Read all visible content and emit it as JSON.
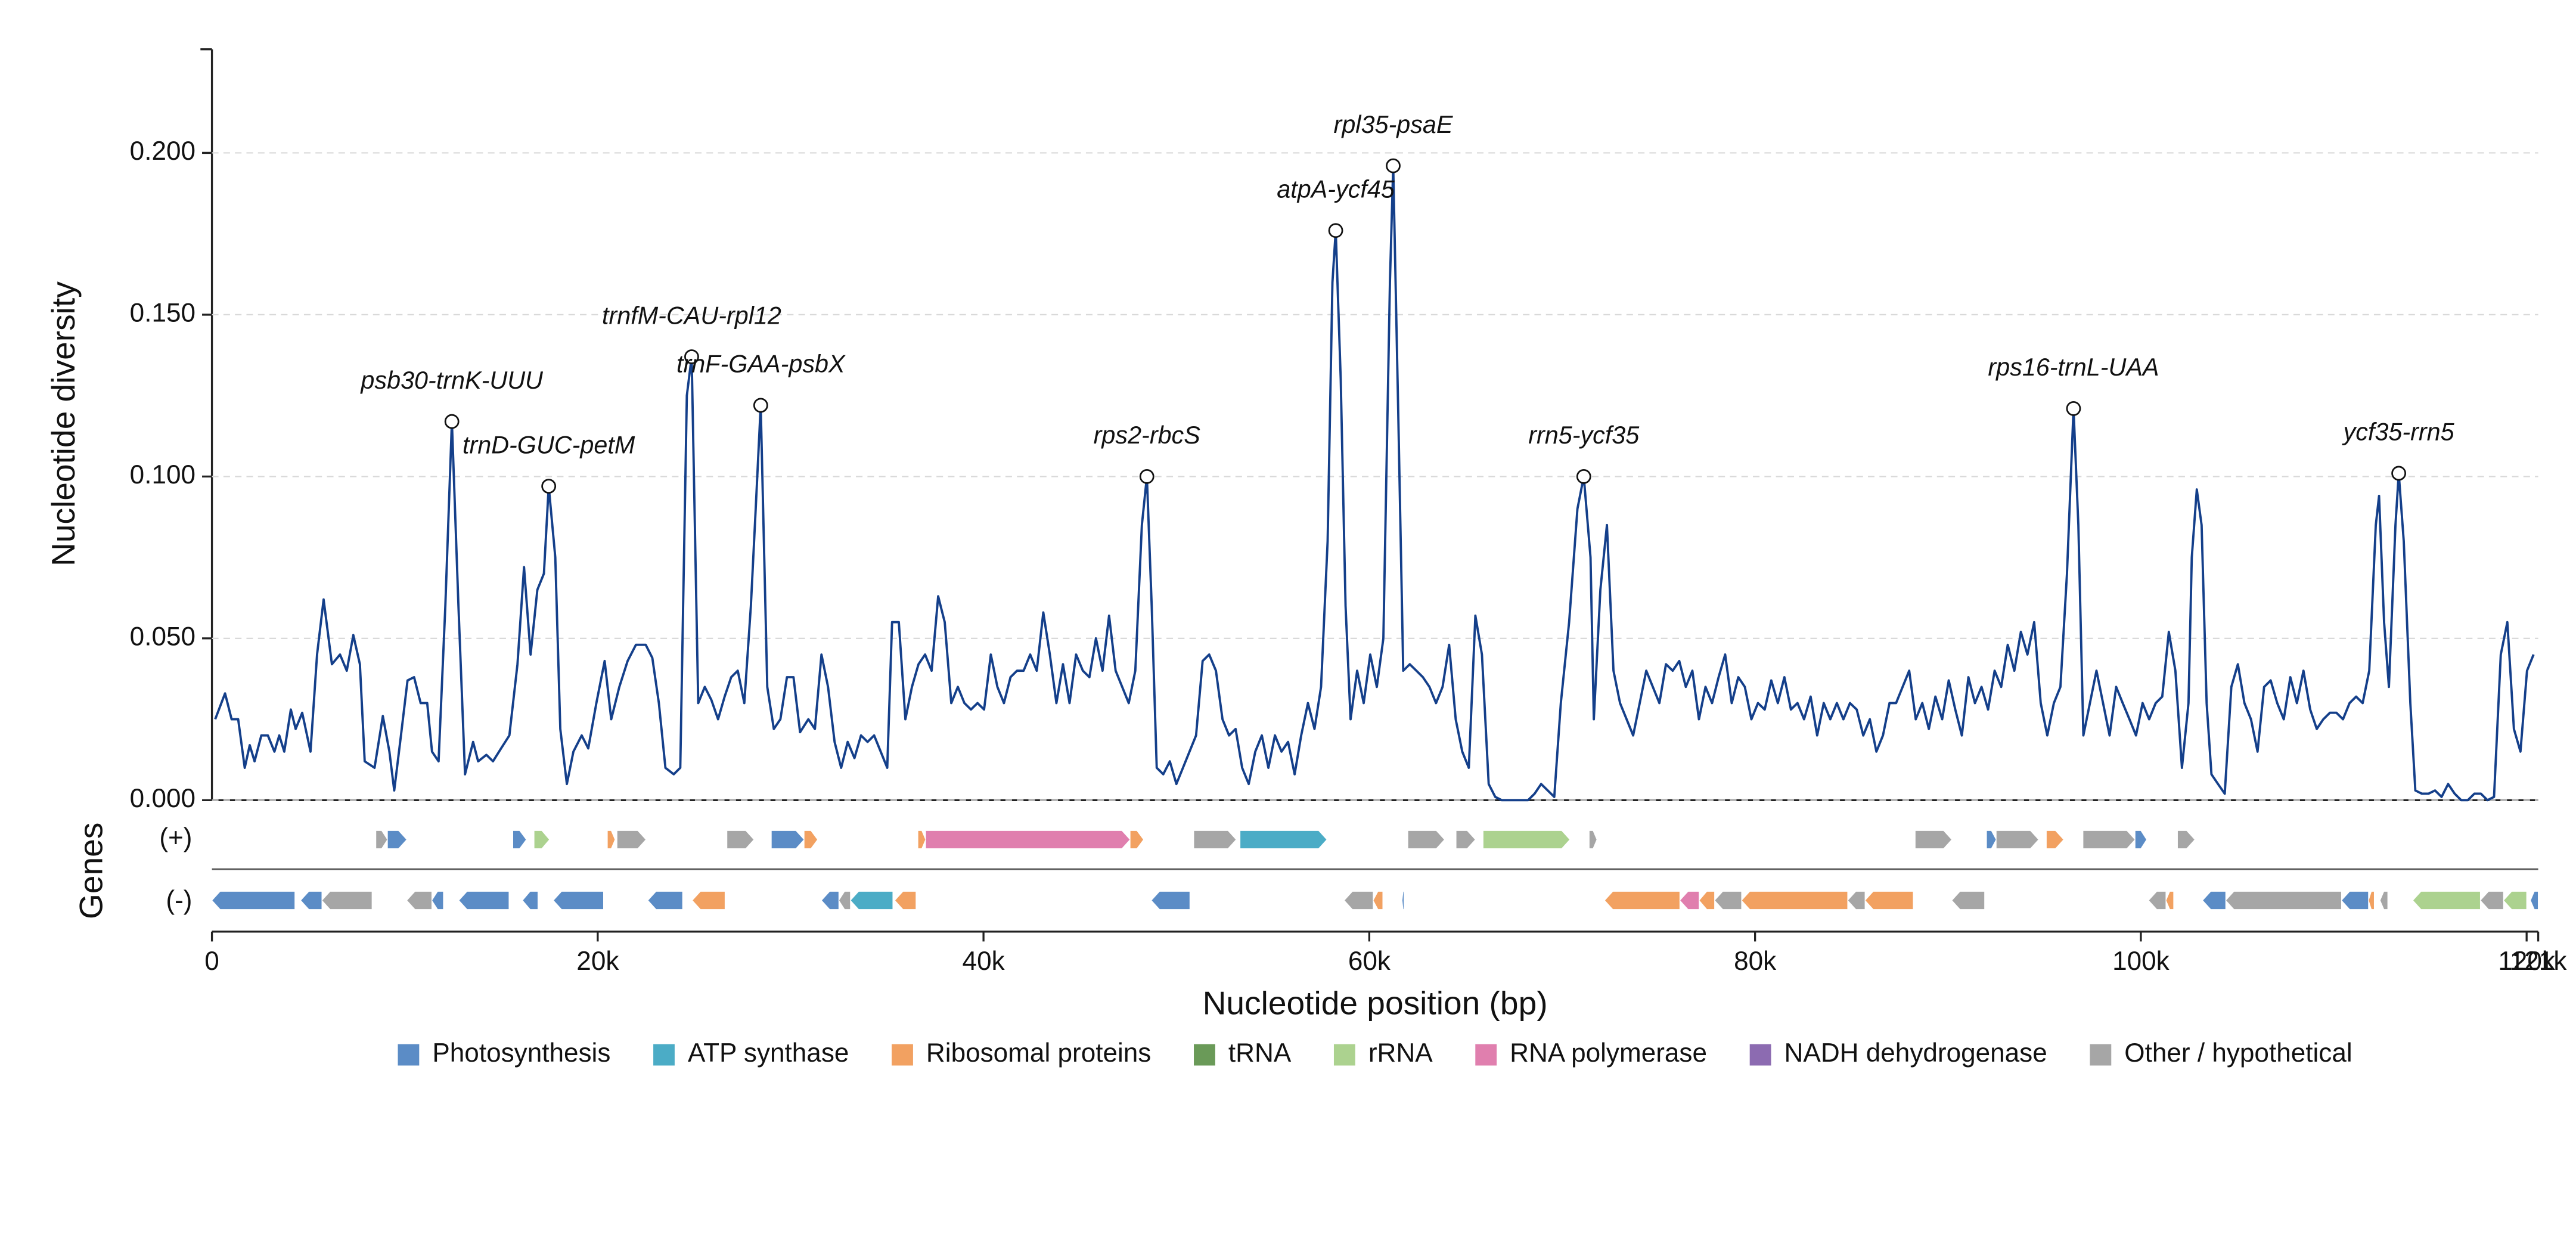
{
  "chart_data": {
    "type": "line",
    "y_label": "Nucleotide diversity",
    "x_label": "Nucleotide position (bp)",
    "color": "#143f8a",
    "grid": true,
    "xlim": [
      0,
      120600
    ],
    "xticks": [
      0,
      {
        "value": 20000,
        "label": "20k"
      },
      {
        "value": 40000,
        "label": "40k"
      },
      {
        "value": 60000,
        "label": "60k"
      },
      {
        "value": 80000,
        "label": "80k"
      },
      {
        "value": 100000,
        "label": "100k"
      },
      {
        "value": 120000,
        "label": "120k"
      },
      {
        "value": 120600,
        "label": "121k"
      }
    ],
    "ylim": [
      0,
      0.232
    ],
    "yticks": [
      {
        "value": 0,
        "label": "0.000"
      },
      {
        "value": 0.05,
        "label": "0.050"
      },
      {
        "value": 0.1,
        "label": "0.100"
      },
      {
        "value": 0.15,
        "label": "0.150"
      },
      {
        "value": 0.2,
        "label": "0.200"
      }
    ],
    "x": [
      170,
      680,
      1020,
      1360,
      1700,
      1960,
      2210,
      2560,
      2900,
      3240,
      3490,
      3750,
      4090,
      4340,
      4680,
      5110,
      5450,
      5790,
      6220,
      6640,
      6990,
      7330,
      7670,
      7920,
      8430,
      8860,
      9200,
      9450,
      9800,
      10140,
      10480,
      10820,
      11160,
      11410,
      11750,
      12100,
      12440,
      12780,
      13120,
      13540,
      13800,
      14230,
      14570,
      14990,
      15420,
      15840,
      16180,
      16520,
      16870,
      17210,
      17460,
      17800,
      18060,
      18400,
      18740,
      19170,
      19510,
      19930,
      20360,
      20700,
      21120,
      21550,
      21980,
      22490,
      22830,
      23170,
      23510,
      23940,
      24280,
      24620,
      24870,
      25210,
      25550,
      25890,
      26240,
      26580,
      26920,
      27260,
      27600,
      27940,
      28190,
      28450,
      28790,
      29130,
      29470,
      29810,
      30150,
      30490,
      30920,
      31260,
      31600,
      31940,
      32280,
      32620,
      32960,
      33310,
      33650,
      33990,
      34330,
      34670,
      35010,
      35260,
      35610,
      35950,
      36290,
      36630,
      36970,
      37310,
      37650,
      37990,
      38330,
      38670,
      39010,
      39350,
      39690,
      40030,
      40380,
      40720,
      41060,
      41400,
      41740,
      42080,
      42420,
      42760,
      43100,
      43440,
      43780,
      44120,
      44460,
      44800,
      45150,
      45490,
      45830,
      46170,
      46510,
      46850,
      47190,
      47530,
      47870,
      48210,
      48470,
      48720,
      48980,
      49320,
      49660,
      50000,
      50340,
      50680,
      51020,
      51360,
      51700,
      52050,
      52390,
      52730,
      53070,
      53410,
      53750,
      54090,
      54430,
      54770,
      55110,
      55450,
      55790,
      56130,
      56470,
      56820,
      57160,
      57500,
      57840,
      58090,
      58260,
      58520,
      58770,
      59030,
      59370,
      59710,
      60050,
      60390,
      60730,
      61070,
      61240,
      61500,
      61760,
      62100,
      62440,
      62780,
      63120,
      63460,
      63800,
      64140,
      64480,
      64820,
      65160,
      65500,
      65840,
      66190,
      66530,
      66870,
      67210,
      67550,
      67890,
      68230,
      68570,
      68910,
      69250,
      69590,
      69930,
      70360,
      70790,
      71120,
      71470,
      71640,
      71980,
      72320,
      72660,
      73000,
      73340,
      73680,
      74020,
      74360,
      74700,
      75040,
      75380,
      75730,
      76070,
      76410,
      76750,
      77090,
      77430,
      77770,
      78110,
      78450,
      78790,
      79130,
      79470,
      79810,
      80150,
      80500,
      80840,
      81180,
      81520,
      81860,
      82200,
      82540,
      82880,
      83220,
      83560,
      83900,
      84240,
      84580,
      84920,
      85270,
      85610,
      85950,
      86290,
      86630,
      86970,
      87310,
      87650,
      87990,
      88330,
      88670,
      89010,
      89350,
      89700,
      90040,
      90380,
      90720,
      91060,
      91400,
      91740,
      92080,
      92420,
      92760,
      93100,
      93440,
      93780,
      94120,
      94470,
      94810,
      95150,
      95490,
      95830,
      96170,
      96510,
      96760,
      97020,
      97360,
      97700,
      98040,
      98380,
      98720,
      99060,
      99410,
      99750,
      100090,
      100430,
      100770,
      101110,
      101450,
      101790,
      102130,
      102470,
      102640,
      102900,
      103150,
      103410,
      103660,
      104000,
      104350,
      104690,
      105030,
      105370,
      105710,
      106050,
      106390,
      106730,
      107070,
      107410,
      107750,
      108090,
      108430,
      108780,
      109120,
      109460,
      109800,
      110140,
      110480,
      110820,
      111160,
      111500,
      111840,
      112180,
      112350,
      112610,
      112860,
      113200,
      113370,
      113630,
      113970,
      114230,
      114570,
      114910,
      115250,
      115590,
      115930,
      116270,
      116610,
      116950,
      117290,
      117630,
      117970,
      118310,
      118660,
      119000,
      119340,
      119680,
      120020,
      120360
    ],
    "values": [
      0.025,
      0.033,
      0.025,
      0.025,
      0.01,
      0.017,
      0.012,
      0.02,
      0.02,
      0.015,
      0.02,
      0.015,
      0.028,
      0.022,
      0.027,
      0.015,
      0.045,
      0.062,
      0.042,
      0.045,
      0.04,
      0.051,
      0.042,
      0.012,
      0.01,
      0.026,
      0.015,
      0.003,
      0.02,
      0.037,
      0.038,
      0.03,
      0.03,
      0.015,
      0.012,
      0.06,
      0.117,
      0.06,
      0.008,
      0.018,
      0.012,
      0.014,
      0.012,
      0.016,
      0.02,
      0.042,
      0.072,
      0.045,
      0.065,
      0.07,
      0.097,
      0.075,
      0.022,
      0.005,
      0.015,
      0.02,
      0.016,
      0.03,
      0.043,
      0.025,
      0.035,
      0.043,
      0.048,
      0.048,
      0.044,
      0.03,
      0.01,
      0.008,
      0.01,
      0.125,
      0.137,
      0.03,
      0.035,
      0.031,
      0.025,
      0.032,
      0.038,
      0.04,
      0.03,
      0.06,
      0.09,
      0.122,
      0.035,
      0.022,
      0.025,
      0.038,
      0.038,
      0.021,
      0.025,
      0.022,
      0.045,
      0.035,
      0.018,
      0.01,
      0.018,
      0.013,
      0.02,
      0.018,
      0.02,
      0.015,
      0.01,
      0.055,
      0.055,
      0.025,
      0.035,
      0.042,
      0.045,
      0.04,
      0.063,
      0.055,
      0.03,
      0.035,
      0.03,
      0.028,
      0.03,
      0.028,
      0.045,
      0.035,
      0.03,
      0.038,
      0.04,
      0.04,
      0.045,
      0.04,
      0.058,
      0.045,
      0.03,
      0.042,
      0.03,
      0.045,
      0.04,
      0.038,
      0.05,
      0.04,
      0.057,
      0.04,
      0.035,
      0.03,
      0.04,
      0.085,
      0.1,
      0.06,
      0.01,
      0.008,
      0.012,
      0.005,
      0.01,
      0.015,
      0.02,
      0.043,
      0.045,
      0.04,
      0.025,
      0.02,
      0.022,
      0.01,
      0.005,
      0.015,
      0.02,
      0.01,
      0.02,
      0.015,
      0.018,
      0.008,
      0.02,
      0.03,
      0.022,
      0.035,
      0.08,
      0.16,
      0.176,
      0.13,
      0.06,
      0.025,
      0.04,
      0.03,
      0.045,
      0.035,
      0.05,
      0.16,
      0.196,
      0.12,
      0.04,
      0.042,
      0.04,
      0.038,
      0.035,
      0.03,
      0.035,
      0.048,
      0.025,
      0.015,
      0.01,
      0.057,
      0.045,
      0.005,
      0.001,
      0,
      0,
      0,
      0,
      0,
      0.002,
      0.005,
      0.003,
      0.001,
      0.03,
      0.055,
      0.09,
      0.1,
      0.075,
      0.025,
      0.065,
      0.085,
      0.04,
      0.03,
      0.025,
      0.02,
      0.03,
      0.04,
      0.035,
      0.03,
      0.042,
      0.04,
      0.043,
      0.035,
      0.04,
      0.025,
      0.035,
      0.03,
      0.038,
      0.045,
      0.03,
      0.038,
      0.035,
      0.025,
      0.03,
      0.028,
      0.037,
      0.03,
      0.038,
      0.028,
      0.03,
      0.025,
      0.032,
      0.02,
      0.03,
      0.025,
      0.03,
      0.025,
      0.03,
      0.028,
      0.02,
      0.025,
      0.015,
      0.02,
      0.03,
      0.03,
      0.035,
      0.04,
      0.025,
      0.03,
      0.022,
      0.032,
      0.025,
      0.037,
      0.028,
      0.02,
      0.038,
      0.03,
      0.035,
      0.028,
      0.04,
      0.035,
      0.048,
      0.04,
      0.052,
      0.045,
      0.055,
      0.03,
      0.02,
      0.03,
      0.035,
      0.07,
      0.121,
      0.085,
      0.02,
      0.03,
      0.04,
      0.03,
      0.02,
      0.035,
      0.03,
      0.025,
      0.02,
      0.03,
      0.025,
      0.03,
      0.032,
      0.052,
      0.04,
      0.01,
      0.03,
      0.075,
      0.096,
      0.085,
      0.03,
      0.008,
      0.005,
      0.002,
      0.035,
      0.042,
      0.03,
      0.025,
      0.015,
      0.035,
      0.037,
      0.03,
      0.025,
      0.038,
      0.03,
      0.04,
      0.028,
      0.022,
      0.025,
      0.027,
      0.027,
      0.025,
      0.03,
      0.032,
      0.03,
      0.04,
      0.085,
      0.094,
      0.055,
      0.035,
      0.085,
      0.101,
      0.08,
      0.03,
      0.003,
      0.002,
      0.002,
      0.003,
      0.001,
      0.005,
      0.002,
      0,
      0,
      0.002,
      0.002,
      0,
      0.001,
      0.045,
      0.055,
      0.022,
      0.015,
      0.04,
      0.045
    ],
    "annotations": [
      {
        "text": "psb30-trnK-UUU",
        "x": 12440,
        "y": 0.117
      },
      {
        "text": "trnD-GUC-petM",
        "x": 17460,
        "y": 0.097
      },
      {
        "text": "trnfM-CAU-rpl12",
        "x": 24870,
        "y": 0.137
      },
      {
        "text": "trnF-GAA-psbX",
        "x": 28450,
        "y": 0.122
      },
      {
        "text": "rps2-rbcS",
        "x": 48470,
        "y": 0.1
      },
      {
        "text": "atpA-ycf45",
        "x": 58260,
        "y": 0.176
      },
      {
        "text": "rpl35-psaE",
        "x": 61240,
        "y": 0.196
      },
      {
        "text": "rrn5-ycf35",
        "x": 71120,
        "y": 0.1
      },
      {
        "text": "rps16-trnL-UAA",
        "x": 96510,
        "y": 0.121
      },
      {
        "text": "ycf35-rrn5",
        "x": 113370,
        "y": 0.101
      }
    ],
    "gene_track": {
      "label": "Genes",
      "strands": [
        "(+)",
        "(-)"
      ],
      "categories": [
        {
          "name": "Photosynthesis",
          "color": "#5b8cc6"
        },
        {
          "name": "ATP synthase",
          "color": "#4bacc6"
        },
        {
          "name": "Ribosomal proteins",
          "color": "#f2a161"
        },
        {
          "name": "tRNA",
          "color": "#6a9a58"
        },
        {
          "name": "rRNA",
          "color": "#acd28f"
        },
        {
          "name": "RNA polymerase",
          "color": "#e07fae"
        },
        {
          "name": "NADH dehydrogenase",
          "color": "#8c6bb1"
        },
        {
          "name": "Other / hypothetical",
          "color": "#a6a6a6"
        }
      ],
      "genes": [
        {
          "start": 8500,
          "end": 9100,
          "strand": 0,
          "category": 7
        },
        {
          "start": 9100,
          "end": 10100,
          "strand": 0,
          "category": 0
        },
        {
          "start": 15600,
          "end": 16300,
          "strand": 0,
          "category": 0
        },
        {
          "start": 16700,
          "end": 17500,
          "strand": 0,
          "category": 4
        },
        {
          "start": 20500,
          "end": 20900,
          "strand": 0,
          "category": 2
        },
        {
          "start": 21000,
          "end": 22500,
          "strand": 0,
          "category": 7
        },
        {
          "start": 26700,
          "end": 28100,
          "strand": 0,
          "category": 7
        },
        {
          "start": 29000,
          "end": 30700,
          "strand": 0,
          "category": 0
        },
        {
          "start": 30700,
          "end": 31400,
          "strand": 0,
          "category": 2
        },
        {
          "start": 36600,
          "end": 37000,
          "strand": 0,
          "category": 2
        },
        {
          "start": 37000,
          "end": 47600,
          "strand": 0,
          "category": 5
        },
        {
          "start": 47600,
          "end": 48300,
          "strand": 0,
          "category": 2
        },
        {
          "start": 50900,
          "end": 53100,
          "strand": 0,
          "category": 7
        },
        {
          "start": 53300,
          "end": 57800,
          "strand": 0,
          "category": 1
        },
        {
          "start": 62000,
          "end": 63900,
          "strand": 0,
          "category": 7
        },
        {
          "start": 64500,
          "end": 65500,
          "strand": 0,
          "category": 7
        },
        {
          "start": 65900,
          "end": 70400,
          "strand": 0,
          "category": 4
        },
        {
          "start": 71400,
          "end": 71800,
          "strand": 0,
          "category": 7
        },
        {
          "start": 88300,
          "end": 90200,
          "strand": 0,
          "category": 7
        },
        {
          "start": 92000,
          "end": 92500,
          "strand": 0,
          "category": 0
        },
        {
          "start": 92500,
          "end": 94700,
          "strand": 0,
          "category": 7
        },
        {
          "start": 95100,
          "end": 96000,
          "strand": 0,
          "category": 2
        },
        {
          "start": 97000,
          "end": 99700,
          "strand": 0,
          "category": 7
        },
        {
          "start": 99700,
          "end": 100300,
          "strand": 0,
          "category": 0
        },
        {
          "start": 101900,
          "end": 102800,
          "strand": 0,
          "category": 7
        },
        {
          "start": 0,
          "end": 4300,
          "strand": 1,
          "category": 0
        },
        {
          "start": 4600,
          "end": 5700,
          "strand": 1,
          "category": 0
        },
        {
          "start": 5700,
          "end": 8300,
          "strand": 1,
          "category": 7
        },
        {
          "start": 10100,
          "end": 11400,
          "strand": 1,
          "category": 7
        },
        {
          "start": 11400,
          "end": 12000,
          "strand": 1,
          "category": 0
        },
        {
          "start": 12800,
          "end": 15400,
          "strand": 1,
          "category": 0
        },
        {
          "start": 16100,
          "end": 16900,
          "strand": 1,
          "category": 0
        },
        {
          "start": 17700,
          "end": 20300,
          "strand": 1,
          "category": 0
        },
        {
          "start": 22600,
          "end": 24400,
          "strand": 1,
          "category": 0
        },
        {
          "start": 24900,
          "end": 26600,
          "strand": 1,
          "category": 2
        },
        {
          "start": 31600,
          "end": 32500,
          "strand": 1,
          "category": 0
        },
        {
          "start": 32500,
          "end": 33100,
          "strand": 1,
          "category": 7
        },
        {
          "start": 33100,
          "end": 35300,
          "strand": 1,
          "category": 1
        },
        {
          "start": 35400,
          "end": 36500,
          "strand": 1,
          "category": 2
        },
        {
          "start": 48700,
          "end": 50700,
          "strand": 1,
          "category": 0
        },
        {
          "start": 58700,
          "end": 60200,
          "strand": 1,
          "category": 7
        },
        {
          "start": 60200,
          "end": 60700,
          "strand": 1,
          "category": 2
        },
        {
          "start": 61700,
          "end": 61800,
          "strand": 1,
          "category": 0
        },
        {
          "start": 72200,
          "end": 76100,
          "strand": 1,
          "category": 2
        },
        {
          "start": 76100,
          "end": 77100,
          "strand": 1,
          "category": 5
        },
        {
          "start": 77100,
          "end": 77900,
          "strand": 1,
          "category": 2
        },
        {
          "start": 77900,
          "end": 79300,
          "strand": 1,
          "category": 7
        },
        {
          "start": 79300,
          "end": 84800,
          "strand": 1,
          "category": 2
        },
        {
          "start": 84800,
          "end": 85700,
          "strand": 1,
          "category": 7
        },
        {
          "start": 85700,
          "end": 88200,
          "strand": 1,
          "category": 2
        },
        {
          "start": 90200,
          "end": 91900,
          "strand": 1,
          "category": 7
        },
        {
          "start": 100400,
          "end": 101300,
          "strand": 1,
          "category": 7
        },
        {
          "start": 101300,
          "end": 101700,
          "strand": 1,
          "category": 2
        },
        {
          "start": 103200,
          "end": 104400,
          "strand": 1,
          "category": 0
        },
        {
          "start": 104400,
          "end": 110400,
          "strand": 1,
          "category": 7
        },
        {
          "start": 110400,
          "end": 111800,
          "strand": 1,
          "category": 0
        },
        {
          "start": 111800,
          "end": 112100,
          "strand": 1,
          "category": 2
        },
        {
          "start": 112400,
          "end": 112800,
          "strand": 1,
          "category": 7
        },
        {
          "start": 114100,
          "end": 117600,
          "strand": 1,
          "category": 4
        },
        {
          "start": 117600,
          "end": 118800,
          "strand": 1,
          "category": 7
        },
        {
          "start": 118800,
          "end": 120000,
          "strand": 1,
          "category": 4
        },
        {
          "start": 120200,
          "end": 120600,
          "strand": 1,
          "category": 0
        }
      ]
    }
  }
}
